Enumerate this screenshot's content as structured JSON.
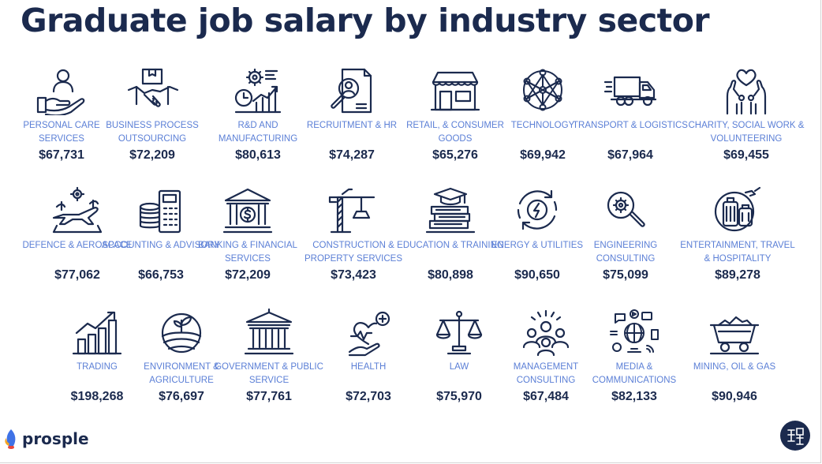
{
  "title": "Graduate job salary by industry sector",
  "colors": {
    "heading": "#1b2a4e",
    "label": "#5b7fd6",
    "icon": "#1b2a4e",
    "accent": "#3f72e6"
  },
  "sectors": [
    {
      "label": "PERSONAL CARE SERVICES",
      "salary": "$67,731",
      "icon": "hand-person-icon"
    },
    {
      "label": "BUSINESS PROCESS OUTSOURCING",
      "salary": "$72,209",
      "icon": "handshake-box-icon"
    },
    {
      "label": "R&D AND MANUFACTURING",
      "salary": "$80,613",
      "icon": "gear-chart-icon"
    },
    {
      "label": "RECRUITMENT & HR",
      "salary": "$74,287",
      "icon": "magnifier-profile-icon"
    },
    {
      "label": "RETAIL, & CONSUMER GOODS",
      "salary": "$65,276",
      "icon": "storefront-icon"
    },
    {
      "label": "TECHNOLOGY",
      "salary": "$69,942",
      "icon": "network-icon"
    },
    {
      "label": "TRANSPORT & LOGISTICS",
      "salary": "$67,964",
      "icon": "truck-icon"
    },
    {
      "label": "CHARITY, SOCIAL WORK & VOLUNTEERING",
      "salary": "$69,455",
      "icon": "hands-heart-icon"
    },
    {
      "label": "DEFENCE & AEROSPACE",
      "salary": "$77,062",
      "icon": "jet-gear-icon"
    },
    {
      "label": "ACCOUNTING & ADVISORY",
      "salary": "$66,753",
      "icon": "coins-calculator-icon"
    },
    {
      "label": "BANKING & FINANCIAL SERVICES",
      "salary": "$72,209",
      "icon": "bank-dollar-icon"
    },
    {
      "label": "CONSTRUCTION & PROPERTY SERVICES",
      "salary": "$73,423",
      "icon": "crane-icon"
    },
    {
      "label": "EDUCATION & TRAINING",
      "salary": "$80,898",
      "icon": "books-cap-icon"
    },
    {
      "label": "ENERGY & UTILITIES",
      "salary": "$90,650",
      "icon": "energy-cycle-icon"
    },
    {
      "label": "ENGINEERING CONSULTING",
      "salary": "$75,099",
      "icon": "magnifier-gear-icon"
    },
    {
      "label": "ENTERTAINMENT, TRAVEL & HOSPITALITY",
      "salary": "$89,278",
      "icon": "luggage-icon"
    },
    {
      "label": "TRADING",
      "salary": "$198,268",
      "icon": "bar-chart-arrow-icon"
    },
    {
      "label": "ENVIRONMENT & AGRICULTURE",
      "salary": "$76,697",
      "icon": "field-sprout-icon"
    },
    {
      "label": "GOVERNMENT & PUBLIC SERVICE",
      "salary": "$77,761",
      "icon": "government-building-icon"
    },
    {
      "label": "HEALTH",
      "salary": "$72,703",
      "icon": "heart-hand-icon"
    },
    {
      "label": "LAW",
      "salary": "$75,970",
      "icon": "scales-icon"
    },
    {
      "label": "MANAGEMENT CONSULTING",
      "salary": "$67,484",
      "icon": "team-icon"
    },
    {
      "label": "MEDIA & COMMUNICATIONS",
      "salary": "$82,133",
      "icon": "media-icons-icon"
    },
    {
      "label": "MINING, OIL & GAS",
      "salary": "$90,946",
      "icon": "mine-cart-icon"
    }
  ],
  "brand": {
    "name": "prosple",
    "logo_icon": "rocket-flame-icon"
  },
  "watermark": {
    "icon": "round-seal-icon"
  }
}
